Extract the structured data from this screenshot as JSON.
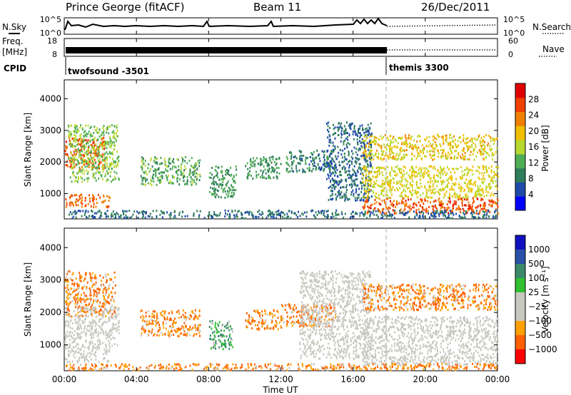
{
  "header": {
    "station": "Prince George (fitACF)",
    "beam": "Beam 11",
    "date": "26/Dec/2011"
  },
  "noise_panel": {
    "left_label": "N.Sky",
    "left_ticks": [
      "10^5",
      "10^0"
    ],
    "right_ticks": [
      "10^5",
      "10^0"
    ],
    "right_label": "N.Search"
  },
  "freq_panel": {
    "left_label_1": "Freq.",
    "left_label_2": "[MHz]",
    "left_ticks": [
      "18",
      "8"
    ],
    "right_ticks": [
      "60",
      "0"
    ],
    "right_label": "Nave"
  },
  "cpid_panel": {
    "label": "CPID",
    "program_1": "twofsound -3501",
    "program_2": "themis 3300"
  },
  "x_axis": {
    "label": "Time UT",
    "ticks": [
      "00:00",
      "04:00",
      "08:00",
      "12:00",
      "16:00",
      "20:00",
      "00:00"
    ]
  },
  "colors": {
    "power_scale": [
      "#0000ff",
      "#1f4aa8",
      "#2e7d5b",
      "#4fae55",
      "#b8d830",
      "#f0c000",
      "#f08000",
      "#f04000",
      "#e00000"
    ],
    "velocity_scale": [
      "#ff0000",
      "#ff6000",
      "#ffa000",
      "#c8c8c0",
      "#c8c8c0",
      "#30c030",
      "#3a8a6a",
      "#2a50a8",
      "#1010c0"
    ],
    "ground_scatter": "#c8c8c0"
  },
  "chart_data": [
    {
      "type": "heatmap",
      "panel": "power",
      "ylabel": "Slant Range [km]",
      "xlabel": "",
      "y_ticks": [
        "1000",
        "2000",
        "3000",
        "4000"
      ],
      "ylim": [
        200,
        4600
      ],
      "xlim_hours": [
        0,
        24
      ],
      "colorbar": {
        "label": "Power [dB]",
        "ticks": [
          "4",
          "8",
          "12",
          "16",
          "20",
          "24",
          "28"
        ],
        "range": [
          0,
          32
        ]
      },
      "regions": [
        {
          "t": [
            0.0,
            2.2
          ],
          "r": [
            1800,
            2800
          ],
          "value": 27
        },
        {
          "t": [
            0.0,
            2.5
          ],
          "r": [
            600,
            1000
          ],
          "value": 26
        },
        {
          "t": [
            0.2,
            3.0
          ],
          "r": [
            1400,
            3200
          ],
          "value": 14
        },
        {
          "t": [
            4.2,
            7.5
          ],
          "r": [
            1300,
            2200
          ],
          "value": 12
        },
        {
          "t": [
            8.0,
            9.5
          ],
          "r": [
            900,
            1900
          ],
          "value": 10
        },
        {
          "t": [
            10.0,
            12.0
          ],
          "r": [
            1500,
            2200
          ],
          "value": 10
        },
        {
          "t": [
            12.2,
            15.0
          ],
          "r": [
            1700,
            2400
          ],
          "value": 8
        },
        {
          "t": [
            14.5,
            17.0
          ],
          "r": [
            800,
            3300
          ],
          "value": 6
        },
        {
          "t": [
            16.5,
            24.0
          ],
          "r": [
            400,
            900
          ],
          "value": 27
        },
        {
          "t": [
            16.5,
            24.0
          ],
          "r": [
            900,
            1900
          ],
          "value": 18
        },
        {
          "t": [
            16.5,
            24.0
          ],
          "r": [
            2100,
            2900
          ],
          "value": 19
        },
        {
          "t": [
            0.0,
            24.0
          ],
          "r": [
            250,
            500
          ],
          "value": 6
        }
      ]
    },
    {
      "type": "heatmap",
      "panel": "velocity",
      "ylabel": "Slant Range [km]",
      "xlabel": "Time UT",
      "y_ticks": [
        "1000",
        "2000",
        "3000",
        "4000"
      ],
      "ylim": [
        200,
        4600
      ],
      "xlim_hours": [
        0,
        24
      ],
      "colorbar": {
        "label": "Velocity [m s⁻¹]",
        "ticks": [
          "1000",
          "500",
          "100",
          "25",
          "−25",
          "−100",
          "−500",
          "−1000"
        ]
      },
      "regions": [
        {
          "t": [
            0.0,
            2.8
          ],
          "r": [
            1900,
            3300
          ],
          "value": -100
        },
        {
          "t": [
            0.0,
            2.5
          ],
          "r": [
            500,
            1000
          ],
          "value": 0
        },
        {
          "t": [
            0.0,
            3.0
          ],
          "r": [
            1000,
            2200
          ],
          "value": 0
        },
        {
          "t": [
            4.2,
            7.5
          ],
          "r": [
            1300,
            2100
          ],
          "value": -100
        },
        {
          "t": [
            8.0,
            9.3
          ],
          "r": [
            900,
            1800
          ],
          "value": 100
        },
        {
          "t": [
            10.0,
            12.0
          ],
          "r": [
            1500,
            2100
          ],
          "value": -100
        },
        {
          "t": [
            12.0,
            15.0
          ],
          "r": [
            1600,
            2300
          ],
          "value": -100
        },
        {
          "t": [
            13.0,
            17.0
          ],
          "r": [
            600,
            3300
          ],
          "value": 0
        },
        {
          "t": [
            16.5,
            24.0
          ],
          "r": [
            2100,
            2900
          ],
          "value": -100
        },
        {
          "t": [
            16.5,
            24.0
          ],
          "r": [
            400,
            1900
          ],
          "value": 0
        },
        {
          "t": [
            0.0,
            24.0
          ],
          "r": [
            250,
            450
          ],
          "value": -100
        }
      ]
    }
  ]
}
